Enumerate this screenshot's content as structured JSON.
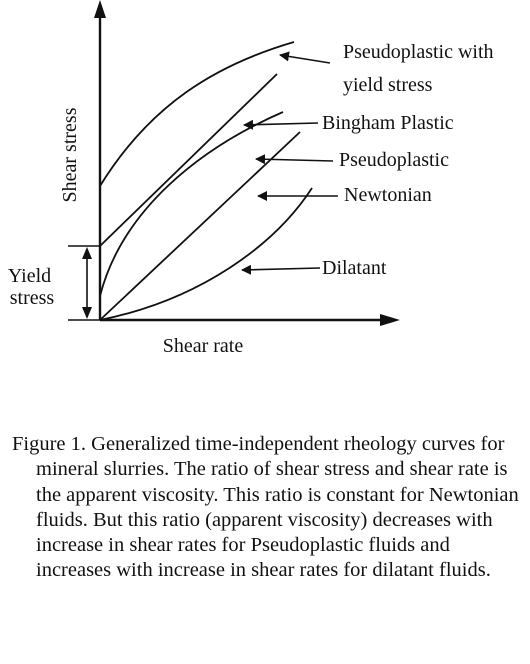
{
  "diagram": {
    "x_axis_label": "Shear rate",
    "y_axis_label": "Shear stress",
    "yield_label_lines": [
      "Yield",
      "stress"
    ],
    "curves": [
      {
        "id": "pseudoplastic-yield",
        "label_lines": [
          "Pseudoplastic with",
          "yield stress"
        ]
      },
      {
        "id": "bingham",
        "label_lines": [
          "Bingham Plastic"
        ]
      },
      {
        "id": "pseudoplastic",
        "label_lines": [
          "Pseudoplastic"
        ]
      },
      {
        "id": "newtonian",
        "label_lines": [
          "Newtonian"
        ]
      },
      {
        "id": "dilatant",
        "label_lines": [
          "Dilatant"
        ]
      }
    ]
  },
  "caption": "Figure 1. Generalized time-independent rheology curves for mineral slurries.  The ratio of shear stress and shear rate is the apparent viscosity. This ratio is constant for Newtonian fluids.  But this ratio (apparent viscosity) decreases with increase in shear rates for Pseudoplastic fluids and increases with increase in shear rates for dilatant fluids.",
  "colors": {
    "ink": "#111111",
    "background": "#ffffff"
  }
}
